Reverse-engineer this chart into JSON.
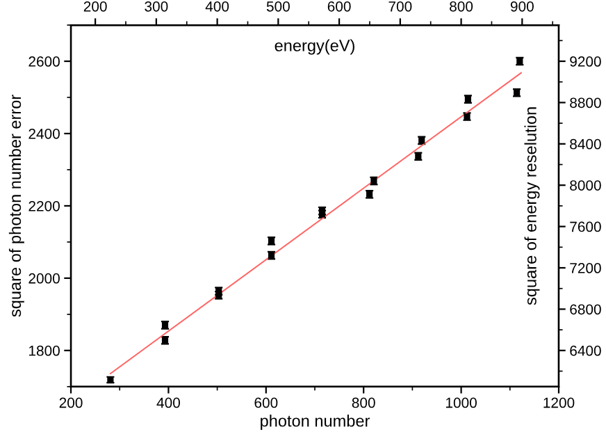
{
  "chart_data": {
    "type": "scatter",
    "xlabel": "photon number",
    "ylabel": "square of photon number error",
    "y2label": "square of energy reselution",
    "x2label": "energy(eV)",
    "xlim": [
      200,
      1200
    ],
    "xticks": [
      200,
      400,
      600,
      800,
      1000,
      1200
    ],
    "ylim": [
      1700,
      2700
    ],
    "yticks": [
      1800,
      2000,
      2200,
      2400,
      2600
    ],
    "x2lim": [
      160,
      960
    ],
    "x2ticks": [
      200,
      300,
      400,
      500,
      600,
      700,
      800,
      900
    ],
    "y2lim": [
      6050,
      9550
    ],
    "y2ticks": [
      6400,
      6800,
      7200,
      7600,
      8000,
      8400,
      8800,
      9200
    ],
    "grid": false,
    "legend": false,
    "marker": "square",
    "series": [
      {
        "color": "#000000",
        "x": [
          281,
          393,
          393,
          503,
          503,
          611,
          611,
          715,
          715,
          812,
          821,
          912,
          919,
          1012,
          1014,
          1114,
          1120
        ],
        "values": [
          1719,
          1870,
          1828,
          1964,
          1953,
          2103,
          2063,
          2186,
          2177,
          2232,
          2269,
          2337,
          2381,
          2447,
          2495,
          2513,
          2600
        ],
        "errors": [
          8,
          10,
          10,
          10,
          10,
          10,
          10,
          10,
          10,
          10,
          10,
          10,
          10,
          10,
          10,
          10,
          10
        ]
      },
      {
        "type": "line",
        "marker": "none",
        "color": "#ff6666",
        "x": [
          281,
          1123
        ],
        "values": [
          1736,
          2568
        ]
      }
    ]
  }
}
